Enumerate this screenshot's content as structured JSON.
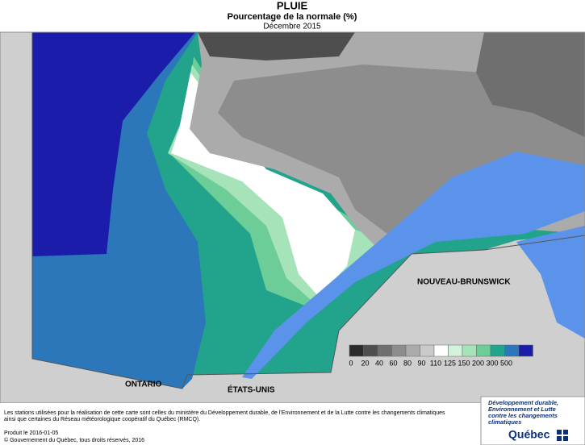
{
  "header": {
    "title": "PLUIE",
    "subtitle": "Pourcentage de la normale (%)",
    "date": "Décembre 2015"
  },
  "map_labels": {
    "ontario": "ONTARIO",
    "new_brunswick": "NOUVEAU-BRUNSWICK",
    "usa": "ÉTATS-UNIS"
  },
  "legend": {
    "colors": [
      "#2b2b2b",
      "#4e4e4e",
      "#6f6f6f",
      "#8d8d8d",
      "#ababab",
      "#cacaca",
      "#ffffff",
      "#d3f2dc",
      "#a6e3b9",
      "#6ccd98",
      "#21a48b",
      "#2c77b9",
      "#1c1cab"
    ],
    "labels": [
      "0",
      "20",
      "40",
      "60",
      "80",
      "90",
      "110",
      "125",
      "150",
      "200",
      "300",
      "500"
    ]
  },
  "footer": {
    "note_lines": [
      "Les stations utilisées pour la réalisation de cette carte sont celles du ministère du Développement durable, de l'Environnement et de la Lutte contre les changements climatiques",
      "ainsi que certaines du Réseau météorologique coopératif du Québec (RMCQ)."
    ],
    "produced": "Produit le 2016-01-05",
    "copyright": "© Gouvernement du Québec, tous droits réservés, 2016"
  },
  "logo": {
    "lines": [
      "Développement durable,",
      "Environnement et Lutte",
      "contre les changements",
      "climatiques"
    ],
    "name": "Québec"
  }
}
